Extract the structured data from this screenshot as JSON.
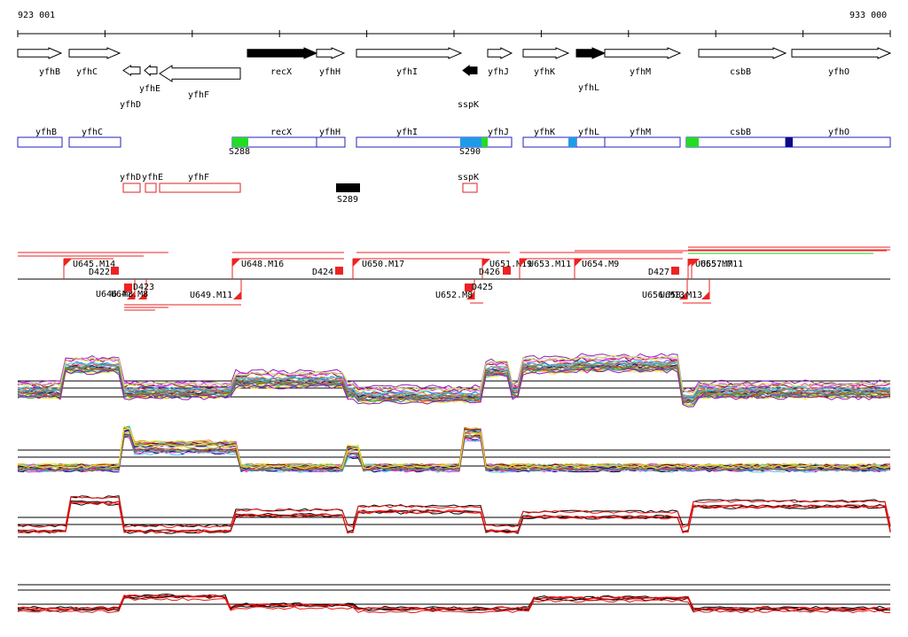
{
  "ruler": {
    "start": "923 001",
    "end": "933 000"
  },
  "genes": [
    {
      "name": "yfhB",
      "strand": "+",
      "fill": "white"
    },
    {
      "name": "yfhC",
      "strand": "+",
      "fill": "white"
    },
    {
      "name": "yfhD",
      "strand": "-",
      "fill": "white"
    },
    {
      "name": "yfhE",
      "strand": "-",
      "fill": "white"
    },
    {
      "name": "yfhF",
      "strand": "-",
      "fill": "white"
    },
    {
      "name": "recX",
      "strand": "+",
      "fill": "black"
    },
    {
      "name": "yfhH",
      "strand": "+",
      "fill": "white"
    },
    {
      "name": "yfhI",
      "strand": "+",
      "fill": "white"
    },
    {
      "name": "sspK",
      "strand": "-",
      "fill": "black"
    },
    {
      "name": "yfhJ",
      "strand": "+",
      "fill": "white"
    },
    {
      "name": "yfhK",
      "strand": "+",
      "fill": "white"
    },
    {
      "name": "yfhL",
      "strand": "+",
      "fill": "black"
    },
    {
      "name": "yfhM",
      "strand": "+",
      "fill": "white"
    },
    {
      "name": "csbB",
      "strand": "+",
      "fill": "white"
    },
    {
      "name": "yfhO",
      "strand": "+",
      "fill": "white"
    }
  ],
  "transcripts_plus": [
    {
      "name": "yfhB"
    },
    {
      "name": "yfhC"
    },
    {
      "name": "recX"
    },
    {
      "name": "yfhH"
    },
    {
      "name": "yfhI"
    },
    {
      "name": "yfhJ"
    },
    {
      "name": "yfhK"
    },
    {
      "name": "yfhL"
    },
    {
      "name": "yfhM"
    },
    {
      "name": "csbB"
    },
    {
      "name": "yfhO"
    }
  ],
  "transcripts_minus": [
    {
      "name": "yfhD"
    },
    {
      "name": "yfhE"
    },
    {
      "name": "yfhF"
    },
    {
      "name": "sspK"
    }
  ],
  "segments": [
    {
      "name": "S288",
      "color": "#22dd22"
    },
    {
      "name": "S290",
      "color": "#1e9be8"
    },
    {
      "name": "S289",
      "color": "#000000"
    }
  ],
  "upshifts_plus": [
    {
      "name": "U645.M14"
    },
    {
      "name": "U648.M16"
    },
    {
      "name": "U650.M17"
    },
    {
      "name": "U651.M19"
    },
    {
      "name": "U653.M11"
    },
    {
      "name": "U654.M9"
    },
    {
      "name": "U655.M7"
    },
    {
      "name": "U657.M11"
    }
  ],
  "downshifts_plus": [
    {
      "name": "D422"
    },
    {
      "name": "D424"
    },
    {
      "name": "D426"
    },
    {
      "name": "D427"
    }
  ],
  "upshifts_minus": [
    {
      "name": "U646.M8"
    },
    {
      "name": "U647.M8"
    },
    {
      "name": "U649.M11"
    },
    {
      "name": "U652.M8"
    },
    {
      "name": "U656.M13"
    },
    {
      "name": "U658.M13"
    }
  ],
  "downshifts_minus": [
    {
      "name": "D423"
    },
    {
      "name": "D425"
    }
  ],
  "colors": {
    "plus_track": "#2222bb",
    "minus_track": "#dd2222",
    "profile_strand_a": "#000000",
    "profile_strand_b": "#ee1111"
  }
}
